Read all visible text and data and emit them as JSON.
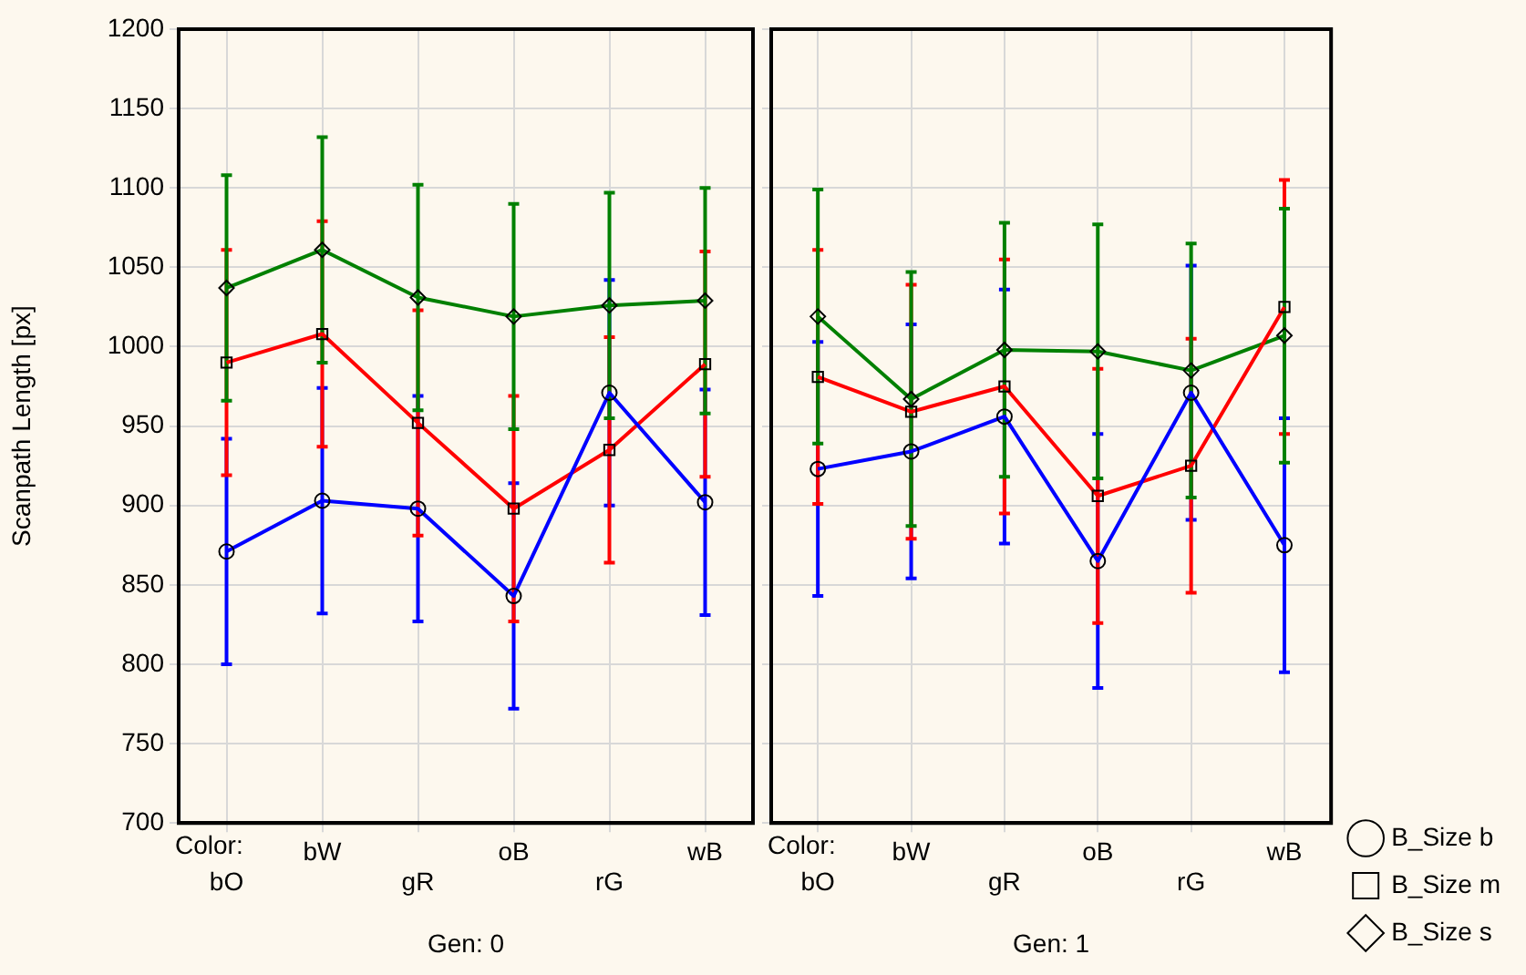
{
  "chart_data": [
    {
      "type": "line",
      "ylabel": "Scanpath Length [px]",
      "xlabel": "Gen: 0",
      "annotations": [
        "Color:"
      ],
      "categories": [
        "bO",
        "bW",
        "gR",
        "oB",
        "rG",
        "wB"
      ],
      "ylim": [
        700,
        1200
      ],
      "yticks": [
        700,
        750,
        800,
        850,
        900,
        950,
        1000,
        1050,
        1100,
        1150,
        1200
      ],
      "grid": true,
      "series": [
        {
          "color": "#0000ff",
          "marker": "circle",
          "values": [
            871,
            903,
            898,
            843,
            971,
            902
          ],
          "errors": [
            71,
            71,
            71,
            71,
            71,
            71
          ]
        },
        {
          "color": "#ff0000",
          "marker": "square",
          "values": [
            990,
            1008,
            952,
            898,
            935,
            989
          ],
          "errors": [
            71,
            71,
            71,
            71,
            71,
            71
          ]
        },
        {
          "color": "#008000",
          "marker": "diamond",
          "values": [
            1037,
            1061,
            1031,
            1019,
            1026,
            1029
          ],
          "errors": [
            71,
            71,
            71,
            71,
            71,
            71
          ]
        }
      ]
    },
    {
      "type": "line",
      "xlabel": "Gen: 1",
      "annotations": [
        "Color:"
      ],
      "categories": [
        "bO",
        "bW",
        "gR",
        "oB",
        "rG",
        "wB"
      ],
      "ylim": [
        700,
        1200
      ],
      "yticks": [
        700,
        750,
        800,
        850,
        900,
        950,
        1000,
        1050,
        1100,
        1150,
        1200
      ],
      "grid": true,
      "legend": "bottom right",
      "tick_labels": "x",
      "series": [
        {
          "name": "B_Size b",
          "color": "#0000ff",
          "marker": "circle",
          "values": [
            923,
            934,
            956,
            865,
            971,
            875
          ],
          "errors": [
            80,
            80,
            80,
            80,
            80,
            80
          ]
        },
        {
          "name": "B_Size m",
          "color": "#ff0000",
          "marker": "square",
          "values": [
            981,
            959,
            975,
            906,
            925,
            1025
          ],
          "errors": [
            80,
            80,
            80,
            80,
            80,
            80
          ]
        },
        {
          "name": "B_Size s",
          "color": "#008000",
          "marker": "diamond",
          "values": [
            1019,
            967,
            998,
            997,
            985,
            1007
          ],
          "errors": [
            80,
            80,
            80,
            80,
            80,
            80
          ]
        }
      ]
    }
  ]
}
